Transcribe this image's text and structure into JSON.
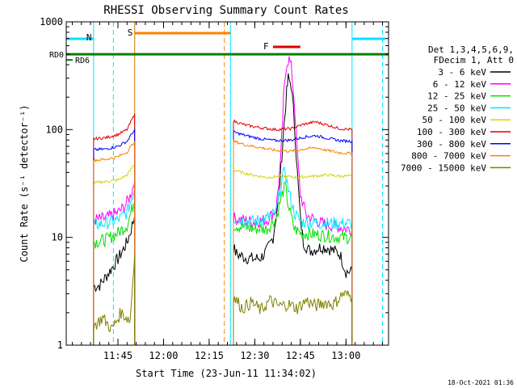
{
  "chart_data": {
    "type": "line",
    "title": "RHESSI Observing Summary Count Rates",
    "xlabel": "Start Time (23-Jun-11 11:34:02)",
    "ylabel": "Count Rate (s⁻¹ detector⁻¹)",
    "yscale": "log",
    "ylim": [
      1,
      1000
    ],
    "xlim_minutes": [
      -6,
      100
    ],
    "xticks": [
      {
        "v": 11,
        "label": "11:45"
      },
      {
        "v": 26,
        "label": "12:00"
      },
      {
        "v": 41,
        "label": "12:15"
      },
      {
        "v": 56,
        "label": "12:30"
      },
      {
        "v": 71,
        "label": "12:45"
      },
      {
        "v": 86,
        "label": "13:00"
      }
    ],
    "yticks": [
      {
        "v": 1,
        "label": "1"
      },
      {
        "v": 10,
        "label": "10"
      },
      {
        "v": 100,
        "label": "100"
      },
      {
        "v": 1000,
        "label": "1000"
      }
    ],
    "legend": {
      "placement": "right",
      "header": [
        "Det 1,3,4,5,6,9,",
        "FDecim 1, Att 0"
      ],
      "entries": [
        {
          "name": "3 - 6 keV",
          "color": "#000000"
        },
        {
          "name": "6 - 12 keV",
          "color": "#ff00ff"
        },
        {
          "name": "12 - 25 keV",
          "color": "#00e000"
        },
        {
          "name": "25 - 50 keV",
          "color": "#00e5ff"
        },
        {
          "name": "50 - 100 keV",
          "color": "#d4d400"
        },
        {
          "name": "100 - 300 keV",
          "color": "#e00000"
        },
        {
          "name": "300 - 800 keV",
          "color": "#0000ff"
        },
        {
          "name": "800 - 7000 keV",
          "color": "#ff8000"
        },
        {
          "name": "7000 - 15000 keV",
          "color": "#808000"
        }
      ]
    },
    "series": [
      {
        "name": "3 - 6 keV",
        "color": "#000000",
        "segments": [
          [
            [
              3,
              3.5
            ],
            [
              5,
              3.6
            ],
            [
              7,
              4.3
            ],
            [
              9,
              5.2
            ],
            [
              11,
              6.3
            ],
            [
              12.5,
              7.5
            ],
            [
              14,
              9
            ],
            [
              15,
              11
            ],
            [
              16,
              14
            ],
            [
              16.5,
              16
            ]
          ],
          [
            [
              49,
              8
            ],
            [
              50,
              7
            ],
            [
              53,
              6.5
            ],
            [
              56,
              6.3
            ],
            [
              58,
              6.5
            ],
            [
              60,
              7.5
            ],
            [
              62,
              10
            ],
            [
              64,
              25
            ],
            [
              65.5,
              100
            ],
            [
              66.5,
              220
            ],
            [
              67,
              300
            ],
            [
              68,
              260
            ],
            [
              69,
              120
            ],
            [
              70,
              40
            ],
            [
              71,
              15
            ],
            [
              72,
              9
            ],
            [
              74,
              7.5
            ],
            [
              76,
              7.8
            ],
            [
              78,
              8.2
            ],
            [
              80,
              8
            ],
            [
              82,
              7.5
            ],
            [
              84,
              7
            ],
            [
              86,
              4.8
            ],
            [
              88,
              4.8
            ]
          ]
        ]
      },
      {
        "name": "6 - 12 keV",
        "color": "#ff00ff",
        "segments": [
          [
            [
              3,
              14.5
            ],
            [
              7,
              15
            ],
            [
              11,
              17
            ],
            [
              13,
              19
            ],
            [
              15,
              24
            ],
            [
              16.5,
              33
            ]
          ],
          [
            [
              49,
              15
            ],
            [
              55,
              14
            ],
            [
              60,
              14.5
            ],
            [
              63,
              18
            ],
            [
              64.5,
              50
            ],
            [
              65.5,
              200
            ],
            [
              66.5,
              420
            ],
            [
              67.3,
              450
            ],
            [
              68,
              380
            ],
            [
              69,
              180
            ],
            [
              70,
              60
            ],
            [
              71,
              25
            ],
            [
              73,
              16
            ],
            [
              78,
              13.5
            ],
            [
              84,
              12.5
            ],
            [
              86,
              12
            ],
            [
              88,
              12
            ]
          ]
        ]
      },
      {
        "name": "12 - 25 keV",
        "color": "#00e000",
        "segments": [
          [
            [
              3,
              9
            ],
            [
              7,
              9.5
            ],
            [
              11,
              11
            ],
            [
              14,
              13
            ],
            [
              16.5,
              22
            ]
          ],
          [
            [
              49,
              13
            ],
            [
              55,
              12
            ],
            [
              60,
              12
            ],
            [
              63,
              15
            ],
            [
              65,
              25
            ],
            [
              66,
              30
            ],
            [
              67,
              20
            ],
            [
              69,
              12
            ],
            [
              71,
              11
            ],
            [
              78,
              10.5
            ],
            [
              84,
              10
            ],
            [
              88,
              10
            ]
          ]
        ]
      },
      {
        "name": "25 - 50 keV",
        "color": "#00e5ff",
        "segments": [
          [
            [
              3,
              13
            ],
            [
              7,
              13.5
            ],
            [
              11,
              14.5
            ],
            [
              14,
              17
            ],
            [
              16.5,
              28
            ]
          ],
          [
            [
              49,
              15
            ],
            [
              55,
              14
            ],
            [
              60,
              15
            ],
            [
              63,
              17
            ],
            [
              65,
              35
            ],
            [
              66,
              42
            ],
            [
              67,
              28
            ],
            [
              69,
              17
            ],
            [
              71,
              14
            ],
            [
              78,
              13.5
            ],
            [
              84,
              13.5
            ],
            [
              88,
              13.5
            ]
          ]
        ]
      },
      {
        "name": "50 - 100 keV",
        "color": "#d4d400",
        "segments": [
          [
            [
              3,
              32
            ],
            [
              7,
              33
            ],
            [
              11,
              34
            ],
            [
              14,
              38
            ],
            [
              16.5,
              48
            ]
          ],
          [
            [
              49,
              42
            ],
            [
              55,
              38
            ],
            [
              60,
              36
            ],
            [
              65,
              37
            ],
            [
              70,
              36
            ],
            [
              75,
              37
            ],
            [
              80,
              38
            ],
            [
              84,
              37
            ],
            [
              88,
              37
            ]
          ]
        ]
      },
      {
        "name": "100 - 300 keV",
        "color": "#e00000",
        "segments": [
          [
            [
              3,
              82
            ],
            [
              7,
              84
            ],
            [
              11,
              90
            ],
            [
              14,
              100
            ],
            [
              16.5,
              140
            ]
          ],
          [
            [
              49,
              120
            ],
            [
              53,
              110
            ],
            [
              58,
              104
            ],
            [
              63,
              100
            ],
            [
              68,
              102
            ],
            [
              72,
              112
            ],
            [
              76,
              118
            ],
            [
              80,
              110
            ],
            [
              84,
              102
            ],
            [
              88,
              100
            ]
          ]
        ]
      },
      {
        "name": "300 - 800 keV",
        "color": "#0000ff",
        "segments": [
          [
            [
              3,
              65
            ],
            [
              7,
              66
            ],
            [
              11,
              70
            ],
            [
              14,
              78
            ],
            [
              16.5,
              100
            ]
          ],
          [
            [
              49,
              95
            ],
            [
              53,
              88
            ],
            [
              58,
              82
            ],
            [
              63,
              79
            ],
            [
              68,
              80
            ],
            [
              72,
              85
            ],
            [
              76,
              88
            ],
            [
              80,
              83
            ],
            [
              84,
              79
            ],
            [
              88,
              78
            ]
          ]
        ]
      },
      {
        "name": "800 - 7000 keV",
        "color": "#ff8000",
        "segments": [
          [
            [
              3,
              52
            ],
            [
              7,
              53
            ],
            [
              11,
              56
            ],
            [
              14,
              62
            ],
            [
              16.5,
              78
            ]
          ],
          [
            [
              49,
              78
            ],
            [
              53,
              72
            ],
            [
              58,
              68
            ],
            [
              63,
              64
            ],
            [
              68,
              63
            ],
            [
              72,
              66
            ],
            [
              76,
              68
            ],
            [
              80,
              64
            ],
            [
              84,
              61
            ],
            [
              88,
              60
            ]
          ]
        ]
      },
      {
        "name": "7000 - 15000 keV",
        "color": "#808000",
        "segments": [
          [
            [
              3,
              1.5
            ],
            [
              6,
              1.8
            ],
            [
              9,
              1.4
            ],
            [
              12,
              2
            ],
            [
              15,
              1.7
            ],
            [
              16.5,
              7
            ]
          ],
          [
            [
              49,
              2.8
            ],
            [
              52,
              2.2
            ],
            [
              55,
              2.5
            ],
            [
              58,
              2.1
            ],
            [
              61,
              2.6
            ],
            [
              64,
              2.3
            ],
            [
              67,
              2.4
            ],
            [
              70,
              2.2
            ],
            [
              73,
              2.6
            ],
            [
              76,
              2.3
            ],
            [
              79,
              2.5
            ],
            [
              82,
              2.4
            ],
            [
              85,
              3
            ],
            [
              88,
              2.8
            ]
          ]
        ]
      }
    ],
    "annotations": {
      "night_windows": [
        [
          3,
          16.5
        ],
        [
          48,
          88
        ]
      ],
      "saa_label": "S",
      "saa_bar_minutes": [
        16.5,
        48
      ],
      "flare_label": "F",
      "flare_bar_minutes": [
        62,
        71
      ],
      "night_label": "N",
      "night_bar_minutes": [
        [
          -6,
          3
        ],
        [
          88,
          99
        ]
      ],
      "rd0_label": "RD0",
      "rd6_label": "RD6",
      "rd0_level": 500,
      "markers_cyan_minutes": [
        3,
        9.5,
        88,
        98
      ],
      "markers_orange_minutes": [
        16.5,
        46
      ]
    }
  },
  "footer": {
    "timestamp": "18-Oct-2021 01:36"
  }
}
